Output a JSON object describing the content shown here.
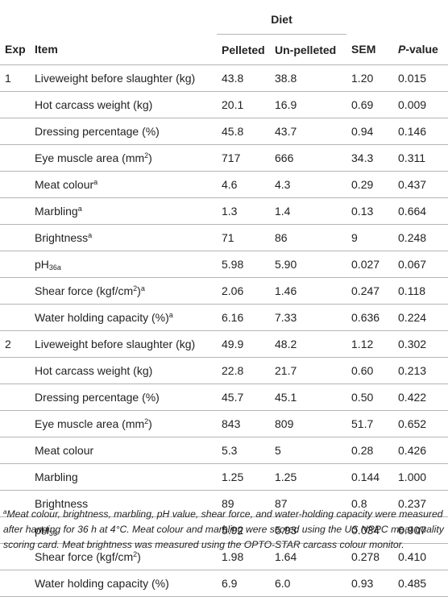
{
  "header": {
    "diet": "Diet",
    "exp": "Exp",
    "item": "Item",
    "pelleted": "Pelleted",
    "unpelleted": "Un-pelleted",
    "sem": "SEM",
    "p_italic": "P",
    "p_rest": "-value"
  },
  "rows": [
    {
      "exp": "1",
      "item": "Liveweight before slaughter (kg)",
      "sup": "",
      "sub": "",
      "pel": "43.8",
      "unp": "38.8",
      "sem": "1.20",
      "p": "0.015"
    },
    {
      "exp": "",
      "item": "Hot carcass weight (kg)",
      "sup": "",
      "sub": "",
      "pel": "20.1",
      "unp": "16.9",
      "sem": "0.69",
      "p": "0.009"
    },
    {
      "exp": "",
      "item": "Dressing percentage (%)",
      "sup": "",
      "sub": "",
      "pel": "45.8",
      "unp": "43.7",
      "sem": "0.94",
      "p": "0.146"
    },
    {
      "exp": "",
      "item": "Eye muscle area (mm",
      "sup": "2",
      "sub": "",
      "tail": ")",
      "pel": "717",
      "unp": "666",
      "sem": "34.3",
      "p": "0.311"
    },
    {
      "exp": "",
      "item": "Meat colour",
      "sup": "a",
      "sub": "",
      "pel": "4.6",
      "unp": "4.3",
      "sem": "0.29",
      "p": "0.437"
    },
    {
      "exp": "",
      "item": "Marbling",
      "sup": "a",
      "sub": "",
      "pel": "1.3",
      "unp": "1.4",
      "sem": "0.13",
      "p": "0.664"
    },
    {
      "exp": "",
      "item": "Brightness",
      "sup": "a",
      "sub": "",
      "pel": "71",
      "unp": "86",
      "sem": "9",
      "p": "0.248"
    },
    {
      "exp": "",
      "item": "pH",
      "sup": "",
      "sub": "36a",
      "pel": "5.98",
      "unp": "5.90",
      "sem": "0.027",
      "p": "0.067"
    },
    {
      "exp": "",
      "item": "Shear force (kgf/cm",
      "sup": "2",
      "sub": "",
      "tail": ")",
      "sup2": "a",
      "pel": "2.06",
      "unp": "1.46",
      "sem": "0.247",
      "p": "0.118"
    },
    {
      "exp": "",
      "item": "Water holding capacity (%)",
      "sup": "a",
      "sub": "",
      "pel": "6.16",
      "unp": "7.33",
      "sem": "0.636",
      "p": "0.224"
    },
    {
      "exp": "2",
      "item": "Liveweight before slaughter (kg)",
      "sup": "",
      "sub": "",
      "pel": "49.9",
      "unp": "48.2",
      "sem": "1.12",
      "p": "0.302"
    },
    {
      "exp": "",
      "item": "Hot carcass weight (kg)",
      "sup": "",
      "sub": "",
      "pel": "22.8",
      "unp": "21.7",
      "sem": "0.60",
      "p": "0.213"
    },
    {
      "exp": "",
      "item": "Dressing percentage (%)",
      "sup": "",
      "sub": "",
      "pel": "45.7",
      "unp": "45.1",
      "sem": "0.50",
      "p": "0.422"
    },
    {
      "exp": "",
      "item": "Eye muscle area (mm",
      "sup": "2",
      "sub": "",
      "tail": ")",
      "pel": "843",
      "unp": "809",
      "sem": "51.7",
      "p": "0.652"
    },
    {
      "exp": "",
      "item": "Meat colour",
      "sup": "",
      "sub": "",
      "pel": "5.3",
      "unp": "5",
      "sem": "0.28",
      "p": "0.426"
    },
    {
      "exp": "",
      "item": "Marbling",
      "sup": "",
      "sub": "",
      "pel": "1.25",
      "unp": "1.25",
      "sem": "0.144",
      "p": "1.000"
    },
    {
      "exp": "",
      "item": "Brightness",
      "sup": "",
      "sub": "",
      "pel": "89",
      "unp": "87",
      "sem": "0.8",
      "p": "0.237"
    },
    {
      "exp": "",
      "item": "pH",
      "sup": "",
      "sub": "36",
      "pel": "5.92",
      "unp": "5.93",
      "sem": "0.034",
      "p": "0.907"
    },
    {
      "exp": "",
      "item": "Shear force (kgf/cm",
      "sup": "2",
      "sub": "",
      "tail": ")",
      "pel": "1.98",
      "unp": "1.64",
      "sem": "0.278",
      "p": "0.410"
    },
    {
      "exp": "",
      "item": "Water holding capacity (%)",
      "sup": "",
      "sub": "",
      "pel": "6.9",
      "unp": "6.0",
      "sem": "0.93",
      "p": "0.485"
    }
  ],
  "footnote": {
    "marker": "a",
    "text": "Meat colour, brightness, marbling, pH value, shear force, and water-holding capacity were measured after hanging for 36 h at 4°C. Meat colour and marbling were scored using the US NPPC meat quality scoring card. Meat brightness was measured using the OPTO-STAR carcass colour monitor."
  }
}
